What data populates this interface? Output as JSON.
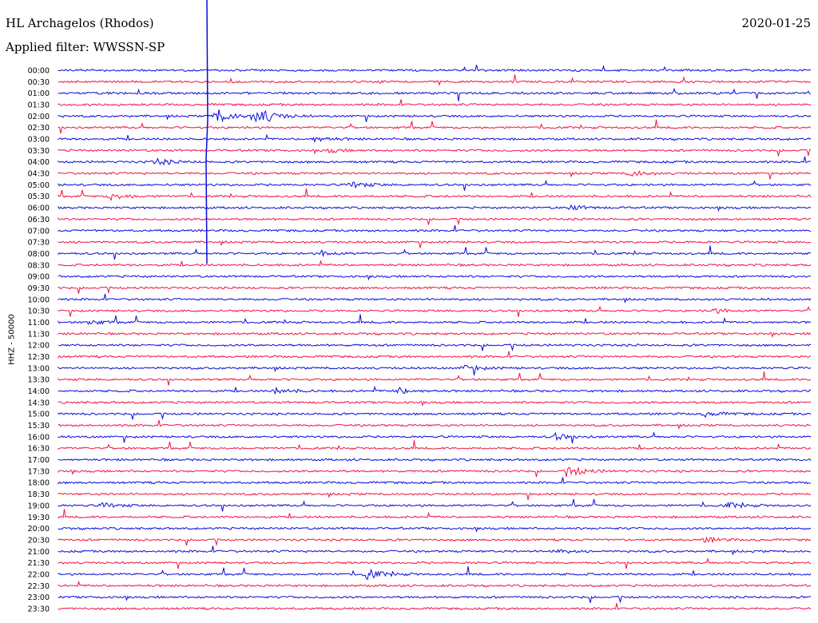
{
  "header": {
    "station": "HL Archagelos (Rhodos)",
    "filter": "Applied filter: WWSSN-SP",
    "date": "2020-01-25"
  },
  "chart_data": {
    "type": "line",
    "title": "HL Archagelos (Rhodos)",
    "subtitle": "Applied filter: WWSSN-SP",
    "ylabel": "HHZ - 50000",
    "row_labels": [
      "00:00",
      "00:30",
      "01:00",
      "01:30",
      "02:00",
      "02:30",
      "03:00",
      "03:30",
      "04:00",
      "04:30",
      "05:00",
      "05:30",
      "06:00",
      "06:30",
      "07:00",
      "07:30",
      "08:00",
      "08:30",
      "09:00",
      "09:30",
      "10:00",
      "10:30",
      "11:00",
      "11:30",
      "12:00",
      "12:30",
      "13:00",
      "13:30",
      "14:00",
      "14:30",
      "15:00",
      "15:30",
      "16:00",
      "16:30",
      "17:00",
      "17:30",
      "18:00",
      "18:30",
      "19:00",
      "19:30",
      "20:00",
      "20:30",
      "21:00",
      "21:30",
      "22:00",
      "22:30",
      "23:00",
      "23:30"
    ],
    "row_colors": [
      "#0a0adc",
      "#f01446"
    ],
    "events": [
      {
        "row": 4,
        "pos": 0.21,
        "amp": 9
      },
      {
        "row": 4,
        "pos": 0.26,
        "amp": 7
      },
      {
        "row": 4,
        "pos": 0.27,
        "amp": 5
      },
      {
        "row": 6,
        "pos": 0.34,
        "amp": 3
      },
      {
        "row": 7,
        "pos": 0.36,
        "amp": 2
      },
      {
        "row": 8,
        "pos": 0.13,
        "amp": 4
      },
      {
        "row": 9,
        "pos": 0.76,
        "amp": 4
      },
      {
        "row": 10,
        "pos": 0.39,
        "amp": 4
      },
      {
        "row": 11,
        "pos": 0.07,
        "amp": 4
      },
      {
        "row": 12,
        "pos": 0.68,
        "amp": 3
      },
      {
        "row": 16,
        "pos": 0.35,
        "amp": 3
      },
      {
        "row": 21,
        "pos": 0.87,
        "amp": 3
      },
      {
        "row": 22,
        "pos": 0.04,
        "amp": 3
      },
      {
        "row": 26,
        "pos": 0.54,
        "amp": 4
      },
      {
        "row": 28,
        "pos": 0.29,
        "amp": 4
      },
      {
        "row": 28,
        "pos": 0.45,
        "amp": 4
      },
      {
        "row": 30,
        "pos": 0.86,
        "amp": 3
      },
      {
        "row": 32,
        "pos": 0.66,
        "amp": 4
      },
      {
        "row": 35,
        "pos": 0.68,
        "amp": 6
      },
      {
        "row": 38,
        "pos": 0.06,
        "amp": 3
      },
      {
        "row": 38,
        "pos": 0.89,
        "amp": 3
      },
      {
        "row": 41,
        "pos": 0.86,
        "amp": 3
      },
      {
        "row": 42,
        "pos": 0.66,
        "amp": 3
      },
      {
        "row": 44,
        "pos": 0.41,
        "amp": 6
      }
    ],
    "xlim": [
      0,
      1
    ],
    "grid": false,
    "legend": "none"
  }
}
